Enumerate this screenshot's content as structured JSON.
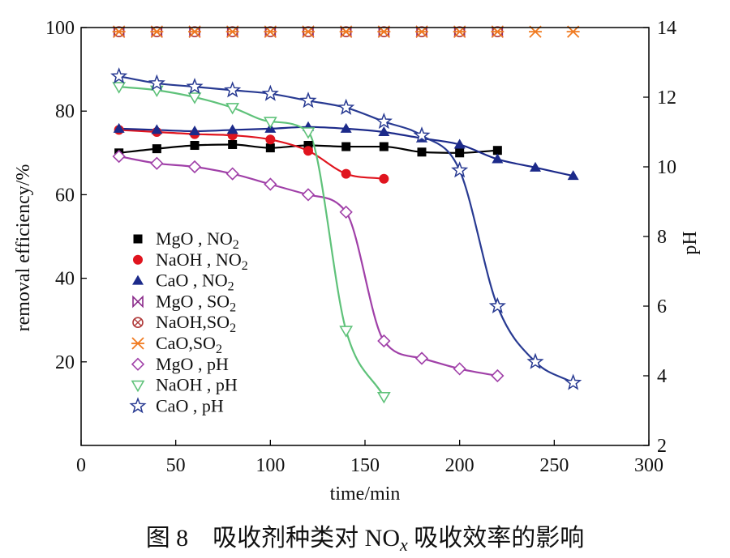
{
  "chart_data": {
    "type": "scatter",
    "caption": "图 8　吸收剂种类对 NOx 吸收效率的影响",
    "caption_parts": {
      "main": "图 8　吸收剂种类对 NO",
      "sub": "x",
      "tail": " 吸收效率的影响"
    },
    "xlabel": "time/min",
    "ylabel_left": "removal efficiency/%",
    "ylabel_right": "pH",
    "xlim": [
      0,
      300
    ],
    "ylim_left": [
      0,
      100
    ],
    "ylim_right": [
      2,
      14
    ],
    "x_ticks": [
      0,
      50,
      100,
      150,
      200,
      250,
      300
    ],
    "y_ticks_left": [
      20,
      40,
      60,
      80,
      100
    ],
    "y_ticks_right": [
      2,
      4,
      6,
      8,
      10,
      12,
      14
    ],
    "grid": false,
    "legend_placement": "left-middle",
    "series": [
      {
        "name": "MgO, NO2",
        "label_main": "MgO , NO",
        "label_sub": "2",
        "axis": "left",
        "marker": "square-filled",
        "color": "#000000",
        "curve": true,
        "x": [
          20,
          40,
          60,
          80,
          100,
          120,
          140,
          160,
          180,
          200,
          220
        ],
        "y": [
          70,
          71,
          71.8,
          72,
          71.2,
          71.8,
          71.5,
          71.5,
          70.2,
          70,
          70.6
        ]
      },
      {
        "name": "NaOH, NO2",
        "label_main": "NaOH , NO",
        "label_sub": "2",
        "axis": "left",
        "marker": "circle-filled",
        "color": "#e0141e",
        "curve": true,
        "x": [
          20,
          40,
          60,
          80,
          100,
          120,
          140,
          160
        ],
        "y": [
          75.5,
          75,
          74.5,
          74.2,
          73.2,
          70.5,
          65,
          63.8
        ]
      },
      {
        "name": "CaO, NO2",
        "label_main": "CaO , NO",
        "label_sub": "2",
        "axis": "left",
        "marker": "triangle-filled",
        "color": "#1c2a8a",
        "curve": true,
        "x": [
          20,
          40,
          60,
          80,
          100,
          120,
          140,
          160,
          180,
          200,
          220,
          240,
          260
        ],
        "y": [
          75.8,
          75.5,
          75.2,
          75.5,
          75.8,
          76.2,
          75.8,
          75,
          73.5,
          72,
          68.5,
          66.5,
          64.5
        ]
      },
      {
        "name": "MgO, SO2",
        "label_main": "MgO , SO",
        "label_sub": "2",
        "axis": "left",
        "marker": "bowtie",
        "color": "#8a2a8a",
        "curve": false,
        "x": [
          20,
          40,
          60,
          80,
          100,
          120,
          140,
          160,
          180,
          200,
          220
        ],
        "y": [
          99,
          99,
          99,
          99,
          99,
          99,
          99,
          99,
          99,
          99,
          99
        ]
      },
      {
        "name": "NaOH, SO2",
        "label_main": "NaOH,SO",
        "label_sub": "2",
        "axis": "left",
        "marker": "circle-x",
        "color": "#b03a3a",
        "curve": false,
        "x": [
          20,
          40,
          60,
          80,
          100,
          120,
          140,
          160,
          180,
          200,
          220
        ],
        "y": [
          99,
          99,
          99,
          99,
          99,
          99,
          99,
          99,
          99,
          99,
          99
        ]
      },
      {
        "name": "CaO, SO2",
        "label_main": "CaO,SO",
        "label_sub": "2",
        "axis": "left",
        "marker": "asterisk",
        "color": "#f07a20",
        "curve": false,
        "x": [
          20,
          40,
          60,
          80,
          100,
          120,
          140,
          160,
          180,
          200,
          220,
          240,
          260
        ],
        "y": [
          99,
          99,
          99,
          99,
          99,
          99,
          99,
          99,
          99,
          99,
          99,
          99,
          99
        ]
      },
      {
        "name": "MgO, pH",
        "label_main": "MgO , pH",
        "label_sub": "",
        "axis": "right",
        "marker": "diamond-open",
        "color": "#a040a8",
        "curve": true,
        "x": [
          20,
          40,
          60,
          80,
          100,
          120,
          140,
          160,
          180,
          200,
          220
        ],
        "y": [
          10.3,
          10.1,
          10,
          9.8,
          9.5,
          9.2,
          8.7,
          5,
          4.5,
          4.2,
          4
        ]
      },
      {
        "name": "NaOH, pH",
        "label_main": "NaOH , pH",
        "label_sub": "",
        "axis": "right",
        "marker": "triangle-down-open",
        "color": "#5fc27a",
        "curve": true,
        "x": [
          20,
          40,
          60,
          80,
          100,
          120,
          140,
          160
        ],
        "y": [
          12.3,
          12.2,
          12,
          11.7,
          11.3,
          11,
          5.3,
          3.4
        ]
      },
      {
        "name": "CaO, pH",
        "label_main": "CaO , pH",
        "label_sub": "",
        "axis": "right",
        "marker": "star-open",
        "color": "#283a92",
        "curve": true,
        "x": [
          20,
          40,
          60,
          80,
          100,
          120,
          140,
          160,
          180,
          200,
          220,
          240,
          260
        ],
        "y": [
          12.6,
          12.4,
          12.3,
          12.2,
          12.1,
          11.9,
          11.7,
          11.3,
          10.9,
          9.9,
          6,
          4.4,
          3.8
        ]
      }
    ]
  }
}
